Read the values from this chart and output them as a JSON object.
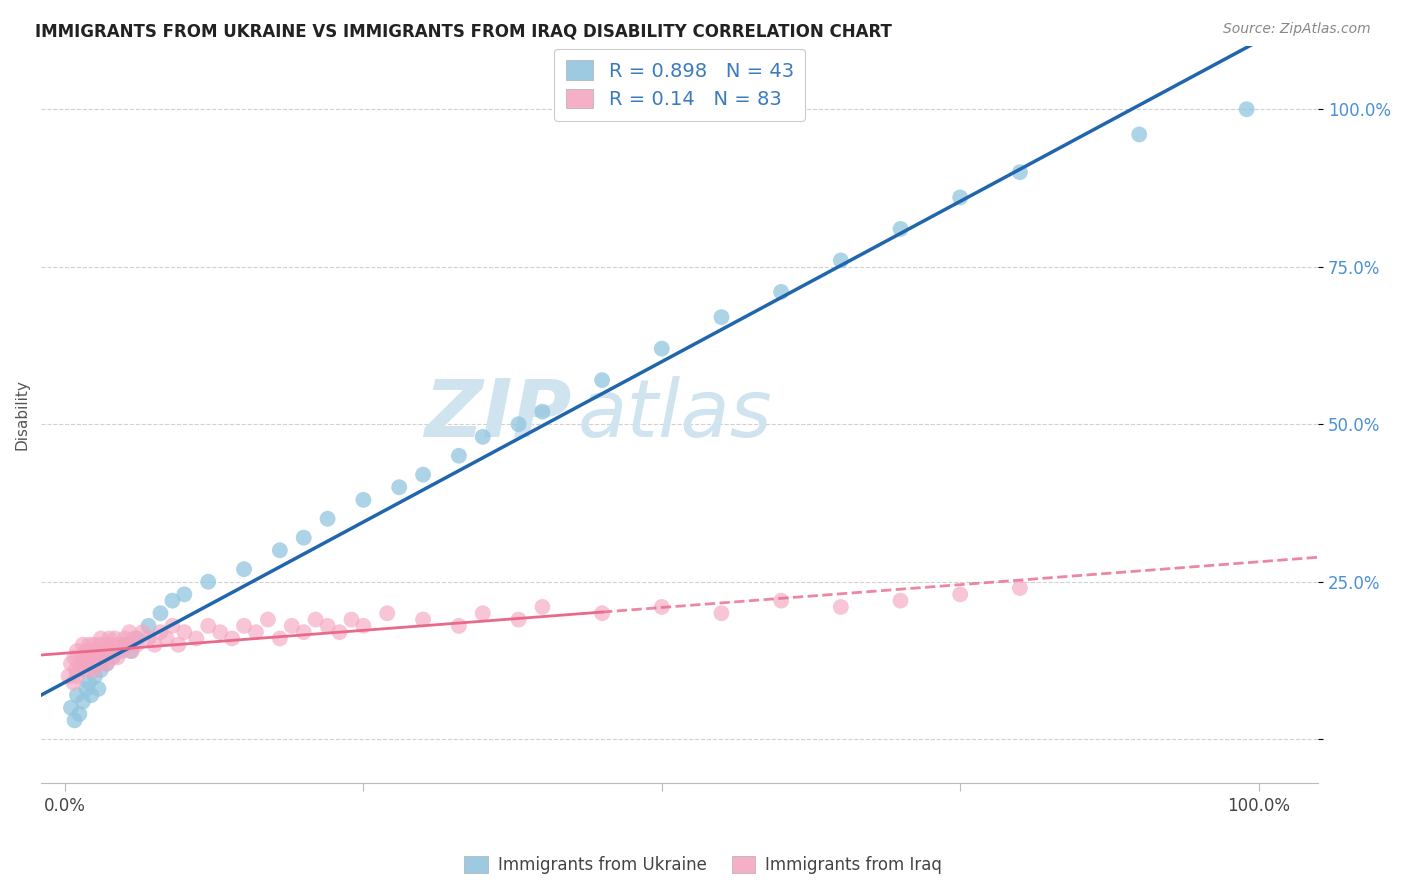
{
  "title": "IMMIGRANTS FROM UKRAINE VS IMMIGRANTS FROM IRAQ DISABILITY CORRELATION CHART",
  "source": "Source: ZipAtlas.com",
  "ylabel": "Disability",
  "ukraine_color": "#92c5de",
  "iraq_color": "#f4a6c0",
  "ukraine_line_color": "#2166ac",
  "iraq_line_color": "#e8698a",
  "ukraine_R": 0.898,
  "ukraine_N": 43,
  "iraq_R": 0.14,
  "iraq_N": 83,
  "watermark_zip": "ZIP",
  "watermark_atlas": "atlas",
  "watermark_color": "#d0e4f0",
  "ukraine_scatter_x": [
    0.005,
    0.008,
    0.01,
    0.012,
    0.015,
    0.018,
    0.02,
    0.022,
    0.025,
    0.028,
    0.03,
    0.035,
    0.04,
    0.045,
    0.05,
    0.055,
    0.06,
    0.07,
    0.08,
    0.09,
    0.1,
    0.12,
    0.15,
    0.18,
    0.2,
    0.22,
    0.25,
    0.28,
    0.3,
    0.33,
    0.35,
    0.38,
    0.4,
    0.45,
    0.5,
    0.55,
    0.6,
    0.65,
    0.7,
    0.75,
    0.8,
    0.9,
    0.99
  ],
  "ukraine_scatter_y": [
    0.05,
    0.03,
    0.07,
    0.04,
    0.06,
    0.08,
    0.09,
    0.07,
    0.1,
    0.08,
    0.11,
    0.12,
    0.13,
    0.14,
    0.15,
    0.14,
    0.16,
    0.18,
    0.2,
    0.22,
    0.23,
    0.25,
    0.27,
    0.3,
    0.32,
    0.35,
    0.38,
    0.4,
    0.42,
    0.45,
    0.48,
    0.5,
    0.52,
    0.57,
    0.62,
    0.67,
    0.71,
    0.76,
    0.81,
    0.86,
    0.9,
    0.96,
    1.0
  ],
  "iraq_scatter_x": [
    0.003,
    0.005,
    0.007,
    0.008,
    0.009,
    0.01,
    0.01,
    0.012,
    0.013,
    0.015,
    0.015,
    0.016,
    0.018,
    0.019,
    0.02,
    0.02,
    0.021,
    0.022,
    0.023,
    0.024,
    0.025,
    0.026,
    0.027,
    0.028,
    0.029,
    0.03,
    0.03,
    0.032,
    0.033,
    0.034,
    0.035,
    0.036,
    0.037,
    0.038,
    0.039,
    0.04,
    0.042,
    0.044,
    0.046,
    0.048,
    0.05,
    0.052,
    0.054,
    0.056,
    0.058,
    0.06,
    0.065,
    0.07,
    0.075,
    0.08,
    0.085,
    0.09,
    0.095,
    0.1,
    0.11,
    0.12,
    0.13,
    0.14,
    0.15,
    0.16,
    0.17,
    0.18,
    0.19,
    0.2,
    0.21,
    0.22,
    0.23,
    0.24,
    0.25,
    0.27,
    0.3,
    0.33,
    0.35,
    0.38,
    0.4,
    0.45,
    0.5,
    0.55,
    0.6,
    0.65,
    0.7,
    0.75,
    0.8
  ],
  "iraq_scatter_y": [
    0.1,
    0.12,
    0.09,
    0.13,
    0.11,
    0.14,
    0.1,
    0.12,
    0.11,
    0.13,
    0.15,
    0.12,
    0.14,
    0.11,
    0.13,
    0.15,
    0.12,
    0.14,
    0.13,
    0.15,
    0.11,
    0.13,
    0.14,
    0.12,
    0.15,
    0.13,
    0.16,
    0.14,
    0.13,
    0.15,
    0.12,
    0.14,
    0.16,
    0.13,
    0.15,
    0.14,
    0.16,
    0.13,
    0.15,
    0.14,
    0.16,
    0.15,
    0.17,
    0.14,
    0.16,
    0.15,
    0.17,
    0.16,
    0.15,
    0.17,
    0.16,
    0.18,
    0.15,
    0.17,
    0.16,
    0.18,
    0.17,
    0.16,
    0.18,
    0.17,
    0.19,
    0.16,
    0.18,
    0.17,
    0.19,
    0.18,
    0.17,
    0.19,
    0.18,
    0.2,
    0.19,
    0.18,
    0.2,
    0.19,
    0.21,
    0.2,
    0.21,
    0.2,
    0.22,
    0.21,
    0.22,
    0.23,
    0.24
  ]
}
